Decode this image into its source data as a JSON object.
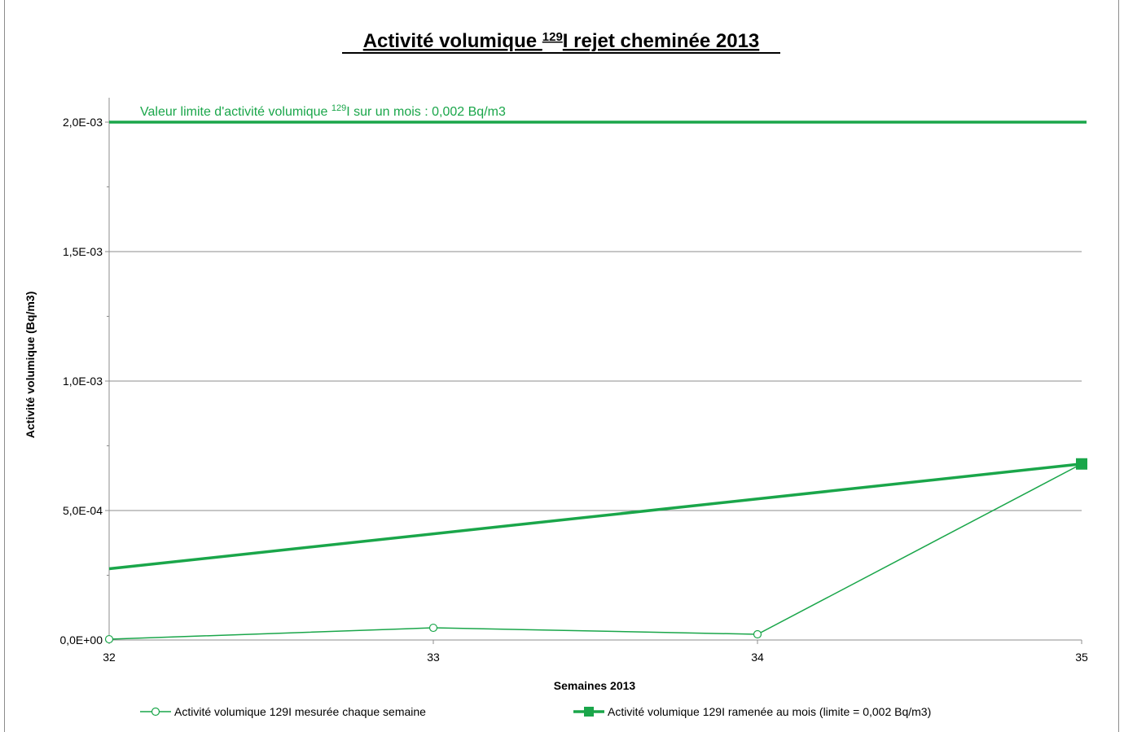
{
  "colors": {
    "series": "#1aa64a",
    "grid": "#8c8c8c",
    "axis": "#8c8c8c"
  },
  "chart_data": {
    "type": "line",
    "title_main": "Activité volumique ",
    "title_sup": "129",
    "title_rest": "I rejet cheminée 2013",
    "xlabel": "Semaines 2013",
    "ylabel": "Activité volumique (Bq/m3)",
    "x": [
      32,
      33,
      34,
      35
    ],
    "x_tick_labels": [
      "32",
      "33",
      "34",
      "35"
    ],
    "ylim": [
      0,
      0.002
    ],
    "y_ticks": [
      0,
      0.0005,
      0.001,
      0.0015,
      0.002
    ],
    "y_tick_labels": [
      "0,0E+00",
      "5,0E-04",
      "1,0E-03",
      "1,5E-03",
      "2,0E-03"
    ],
    "grid": true,
    "legend_position": "bottom",
    "series": [
      {
        "name": "Activité volumique 129I mesurée chaque semaine",
        "marker": "open-circle",
        "x": [
          32,
          33,
          34,
          35
        ],
        "values": [
          3e-06,
          4.7e-05,
          2.2e-05,
          0.00068
        ]
      },
      {
        "name": "Activité volumique 129I ramenée au mois (limite = 0,002 Bq/m3)",
        "marker": "filled-square",
        "x": [
          32,
          35
        ],
        "values": [
          0.000275,
          0.00068
        ],
        "marker_only_last": true
      }
    ],
    "limit_line": {
      "value": 0.002
    },
    "annotation": {
      "text_main": "Valeur limite d'activité volumique ",
      "text_sup": "129",
      "text_rest": "I sur un mois : 0,002 Bq/m3"
    }
  }
}
